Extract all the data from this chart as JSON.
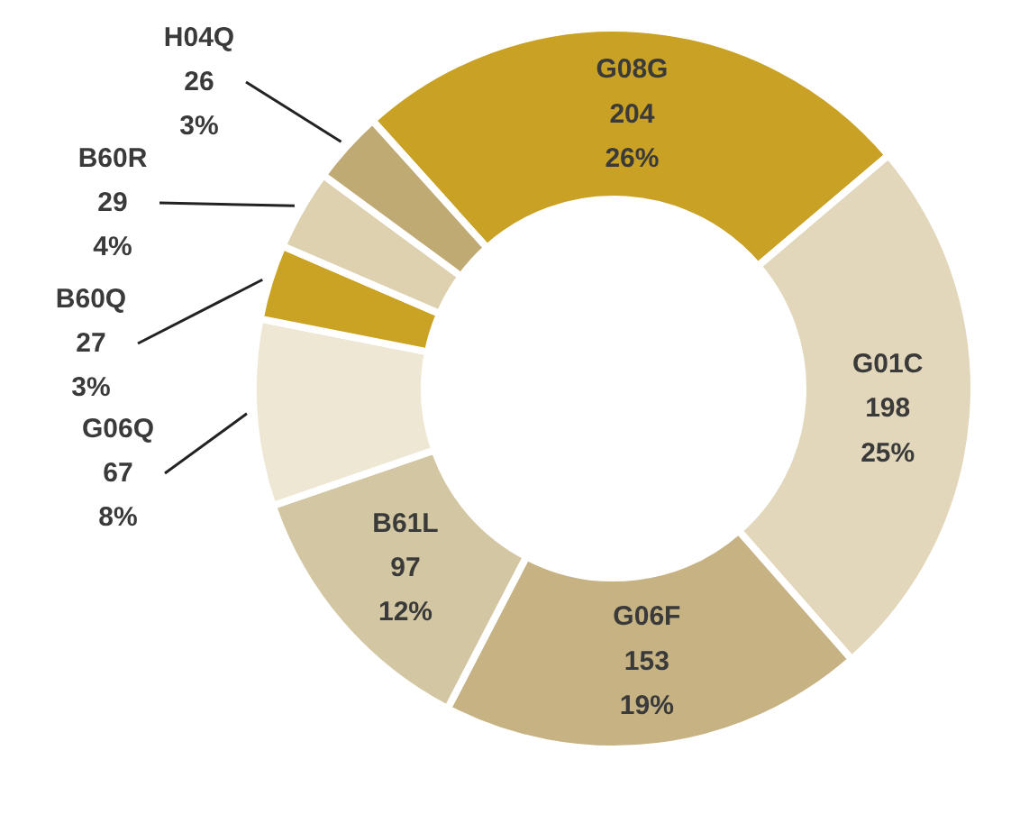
{
  "chart_data": {
    "type": "donut",
    "categories": [
      "G08G",
      "G01C",
      "G06F",
      "B61L",
      "G06Q",
      "B60Q",
      "B60R",
      "H04Q"
    ],
    "values": [
      204,
      198,
      153,
      97,
      67,
      27,
      29,
      26
    ],
    "value_labels": [
      "204\n26%",
      "198\n25%",
      "153\n19%",
      "97\n12%",
      "67\n8%",
      "27\n3%",
      "29\n4%",
      "26\n3%"
    ],
    "colors": [
      "#c9a125",
      "#e2d7bb",
      "#c6b283",
      "#d3c6a2",
      "#eee7d3",
      "#caa224",
      "#ddd1b0",
      "#c0aa74"
    ]
  }
}
